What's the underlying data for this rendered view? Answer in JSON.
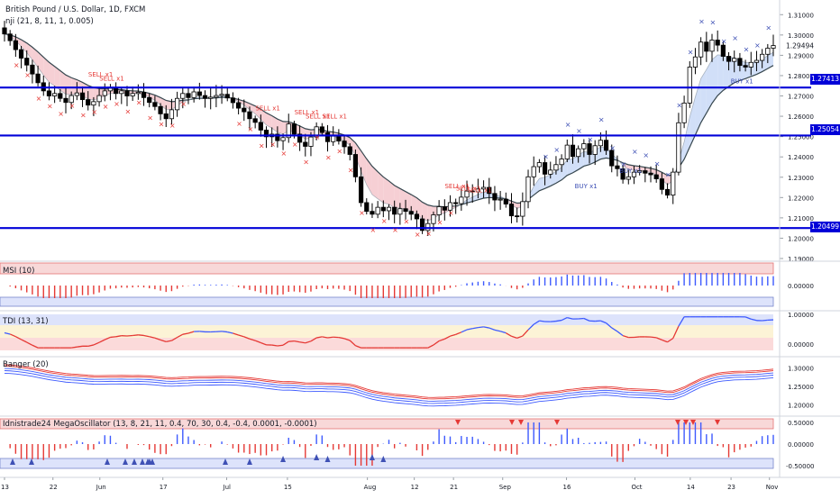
{
  "header": {
    "symbol_line": "British Pound / U.S. Dollar, 1D, FXCM",
    "indicator_line": "nji (21, 8, 11, 1, 0.005)"
  },
  "colors": {
    "bull": "#ffffff",
    "bear": "#000000",
    "level_line": "#0000d8",
    "sell_marker": "#e53935",
    "buy_marker": "#3f51b5",
    "bear_cloud": "#f4c7cc",
    "bull_cloud": "#c9d9f7",
    "neutral_cloud": "#cfe3d2",
    "band_red": "#e53935",
    "band_blue": "#3d5afe"
  },
  "chart_data": [
    {
      "type": "candlestick",
      "title": "British Pound / U.S. Dollar, 1D, FXCM",
      "ylim": [
        1.19,
        1.315
      ],
      "y_ticks": [
        "1.31000",
        "1.30000",
        "1.29000",
        "1.28000",
        "1.27000",
        "1.26000",
        "1.25000",
        "1.24000",
        "1.23000",
        "1.22000",
        "1.21000",
        "1.20000",
        "1.19000"
      ],
      "current_price_label": "1.29494",
      "horizontal_levels": [
        "1.27413",
        "1.25054",
        "1.20499"
      ],
      "x_tick_labels": [
        "13",
        "22",
        "Jun",
        "17",
        "Jul",
        "15",
        "Aug",
        "12",
        "21",
        "Sep",
        "16",
        "Oct",
        "14",
        "23",
        "Nov"
      ],
      "closes": [
        1.3005,
        1.2972,
        1.2928,
        1.2886,
        1.2852,
        1.2808,
        1.2765,
        1.2725,
        1.27,
        1.2712,
        1.2688,
        1.2668,
        1.2702,
        1.2715,
        1.2682,
        1.2655,
        1.2672,
        1.2702,
        1.2725,
        1.2738,
        1.2712,
        1.2725,
        1.27,
        1.2712,
        1.2718,
        1.2692,
        1.2668,
        1.2648,
        1.2612,
        1.2588,
        1.2632,
        1.2688,
        1.2712,
        1.2692,
        1.272,
        1.2702,
        1.2688,
        1.2694,
        1.2702,
        1.2708,
        1.269,
        1.2667,
        1.264,
        1.2622,
        1.2588,
        1.257,
        1.2532,
        1.2499,
        1.2512,
        1.248,
        1.2495,
        1.2562,
        1.2512,
        1.2472,
        1.2452,
        1.2498,
        1.2548,
        1.252,
        1.2475,
        1.2502,
        1.2478,
        1.245,
        1.2412,
        1.2302,
        1.2175,
        1.2132,
        1.2118,
        1.2152,
        1.2135,
        1.2152,
        1.2118,
        1.2145,
        1.2132,
        1.2118,
        1.2095,
        1.2038,
        1.2072,
        1.2115,
        1.2155,
        1.2138,
        1.2175,
        1.217,
        1.2202,
        1.2232,
        1.2228,
        1.2242,
        1.225,
        1.222,
        1.2188,
        1.2192,
        1.2168,
        1.211,
        1.2108,
        1.218,
        1.2302,
        1.2352,
        1.2372,
        1.2315,
        1.2335,
        1.2362,
        1.239,
        1.2458,
        1.2402,
        1.244,
        1.2465,
        1.2412,
        1.2455,
        1.2482,
        1.2432,
        1.2356,
        1.2342,
        1.229,
        1.2302,
        1.2325,
        1.2332,
        1.232,
        1.2312,
        1.2292,
        1.224,
        1.2212,
        1.2325,
        1.2568,
        1.2665,
        1.2842,
        1.2892,
        1.2965,
        1.292,
        1.2975,
        1.295,
        1.2895,
        1.287,
        1.2885,
        1.285,
        1.2842,
        1.2865,
        1.2875,
        1.2905,
        1.2935,
        1.2948
      ],
      "indicator_signals": {
        "sell_labels": [
          "SELL x1",
          "SELL x1",
          "SELL x1",
          "SELL x1",
          "SELL x1",
          "SELL x1",
          "SELL x1",
          "SELL x1",
          "SELL x1"
        ],
        "buy_labels": [
          "BUY x1",
          "BUY x1",
          "BUY x1"
        ]
      }
    },
    {
      "type": "bar",
      "title": "MSI (10)",
      "y_ticks": [
        "0.00000"
      ]
    },
    {
      "type": "line",
      "title": "TDI (13, 31)",
      "y_ticks": [
        "1.00000",
        "0.00000"
      ]
    },
    {
      "type": "line",
      "title": "Banger (20)",
      "y_ticks": [
        "1.30000",
        "1.25000",
        "1.20000"
      ]
    },
    {
      "type": "bar",
      "title": "Idnistrade24 MegaOscillator (13, 8, 21, 11, 0.4, 70, 30, 0.4, -0.4, 0.0001, -0.0001)",
      "y_ticks": [
        "0.50000",
        "0.00000",
        "-0.50000"
      ]
    }
  ]
}
